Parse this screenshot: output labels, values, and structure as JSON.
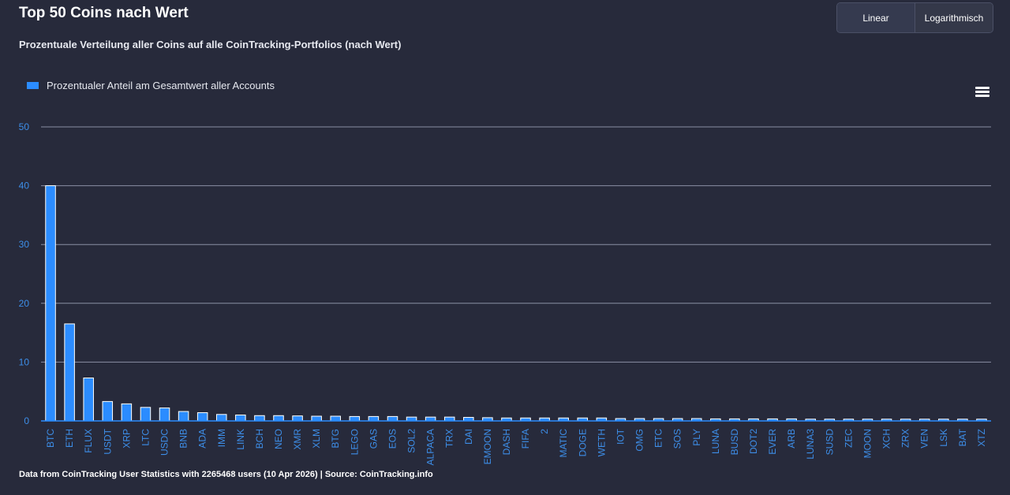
{
  "header": {
    "title": "Top 50 Coins nach Wert",
    "subtitle": "Prozentuale Verteilung aller Coins auf alle CoinTracking-Portfolios (nach Wert)"
  },
  "scale_toggle": {
    "linear_label": "Linear",
    "log_label": "Logarithmisch",
    "selected": "Linear"
  },
  "legend": {
    "label": "Prozentualer Anteil am Gesamtwert aller Accounts"
  },
  "menu": {
    "icon": "hamburger-menu-icon"
  },
  "footer": {
    "text": "Data from CoinTracking User Statistics with 2265468 users (10 Apr 2026) | Source: CoinTracking.info"
  },
  "colors": {
    "background": "#272a3b",
    "bar": "#2b8cff",
    "bar_border": "#ffffff",
    "gridline": "#8a8fa3",
    "axis_label": "#3d8ee8"
  },
  "chart_data": {
    "type": "bar",
    "title": "Top 50 Coins nach Wert",
    "ylim": [
      0,
      50
    ],
    "yticks": [
      0,
      10,
      20,
      30,
      40,
      50
    ],
    "grid": true,
    "legend_position": "top-left",
    "categories": [
      "BTC",
      "ETH",
      "FLUX",
      "USDT",
      "XRP",
      "LTC",
      "USDC",
      "BNB",
      "ADA",
      "IMM",
      "LINK",
      "BCH",
      "NEO",
      "XMR",
      "XLM",
      "BTG",
      "LEGO",
      "GAS",
      "EOS",
      "SOL2",
      "ALPACA",
      "TRX",
      "DAI",
      "EMOON",
      "DASH",
      "FIFA",
      "2",
      "MATIC",
      "DOGE",
      "WETH",
      "IOT",
      "OMG",
      "ETC",
      "SOS",
      "PLY",
      "LUNA",
      "BUSD",
      "DOT2",
      "EVER",
      "ARB",
      "LUNA3",
      "SUSD",
      "ZEC",
      "MOON",
      "XCH",
      "ZRX",
      "VEN",
      "LSK",
      "BAT",
      "XTZ"
    ],
    "series": [
      {
        "name": "Prozentualer Anteil am Gesamtwert aller Accounts",
        "values": [
          40.0,
          16.5,
          7.3,
          3.3,
          2.9,
          2.3,
          2.2,
          1.6,
          1.4,
          1.1,
          1.0,
          0.9,
          0.9,
          0.85,
          0.8,
          0.8,
          0.75,
          0.75,
          0.75,
          0.65,
          0.65,
          0.65,
          0.6,
          0.55,
          0.5,
          0.5,
          0.5,
          0.5,
          0.5,
          0.5,
          0.4,
          0.4,
          0.4,
          0.4,
          0.4,
          0.35,
          0.35,
          0.35,
          0.35,
          0.35,
          0.3,
          0.3,
          0.3,
          0.3,
          0.3,
          0.3,
          0.3,
          0.3,
          0.3,
          0.3
        ]
      }
    ]
  }
}
